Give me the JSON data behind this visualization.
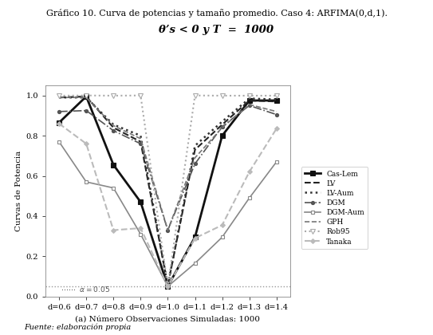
{
  "title_line1": "Gráfico 10. Curva de potencias y tamaño promedio. Caso 4: ARFIMA(0,d,1).",
  "title_line2": "θ’s < 0 y T  =  1000",
  "xlabel": "(a) Número Observaciones Simuladas: 1000",
  "ylabel": "Curvas de Potencia",
  "footnote": "Fuente: elaboración propia",
  "x_ticks": [
    "d=0.6",
    "d=0.7",
    "d=0.8",
    "d=0.9",
    "d=1.0",
    "d=1.1",
    "d=1.2",
    "d=1.3",
    "d=1.4"
  ],
  "x_values": [
    0.6,
    0.7,
    0.8,
    0.9,
    1.0,
    1.1,
    1.2,
    1.3,
    1.4
  ],
  "alpha_line": 0.05,
  "series": {
    "Cas-Lem": {
      "values": [
        0.865,
        0.995,
        0.655,
        0.47,
        0.05,
        0.295,
        0.8,
        0.975,
        0.975
      ],
      "color": "#111111",
      "linestyle": "-",
      "linewidth": 2.0,
      "marker": "s",
      "markersize": 4,
      "markerfacecolor": "#111111"
    },
    "LV": {
      "values": [
        0.99,
        0.995,
        0.84,
        0.77,
        0.055,
        0.73,
        0.855,
        0.975,
        0.97
      ],
      "color": "#222222",
      "linestyle": "--",
      "linewidth": 1.5,
      "marker": null,
      "markersize": 0,
      "markerfacecolor": null
    },
    "LV-Aum": {
      "values": [
        0.99,
        0.99,
        0.855,
        0.8,
        0.055,
        0.75,
        0.87,
        0.985,
        0.98
      ],
      "color": "#333333",
      "linestyle": ":",
      "linewidth": 1.8,
      "marker": null,
      "markersize": 0,
      "markerfacecolor": null
    },
    "DGM": {
      "values": [
        0.92,
        0.925,
        0.825,
        0.76,
        0.33,
        0.66,
        0.845,
        0.95,
        0.905
      ],
      "color": "#555555",
      "linestyle": "-.",
      "linewidth": 1.2,
      "marker": "o",
      "markersize": 3,
      "markerfacecolor": "#555555"
    },
    "DGM-Aum": {
      "values": [
        0.77,
        0.57,
        0.54,
        0.31,
        0.05,
        0.165,
        0.295,
        0.49,
        0.67
      ],
      "color": "#888888",
      "linestyle": "-",
      "linewidth": 1.2,
      "marker": "s",
      "markersize": 3,
      "markerfacecolor": "white"
    },
    "GPH": {
      "values": [
        0.99,
        0.99,
        0.85,
        0.785,
        0.33,
        0.69,
        0.84,
        0.955,
        0.92
      ],
      "color": "#777777",
      "linestyle": "--",
      "linewidth": 1.2,
      "marker": null,
      "markersize": 0,
      "markerfacecolor": null
    },
    "Rob95": {
      "values": [
        0.999,
        1.0,
        0.999,
        1.0,
        0.05,
        1.0,
        0.999,
        0.999,
        0.999
      ],
      "color": "#aaaaaa",
      "linestyle": ":",
      "linewidth": 1.5,
      "marker": "v",
      "markersize": 5,
      "markerfacecolor": "white"
    },
    "Tanaka": {
      "values": [
        0.86,
        0.76,
        0.33,
        0.34,
        0.05,
        0.29,
        0.355,
        0.62,
        0.835
      ],
      "color": "#bbbbbb",
      "linestyle": "--",
      "linewidth": 1.5,
      "marker": "D",
      "markersize": 3,
      "markerfacecolor": "#bbbbbb"
    }
  }
}
